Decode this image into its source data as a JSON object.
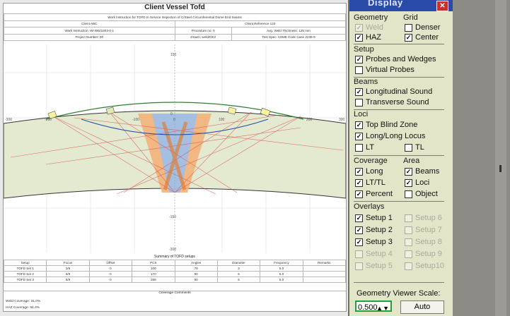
{
  "report": {
    "title": "Client Vessel Tofd",
    "header_rows": [
      [
        "Work Instruction for TOFD In Service Inspection of C/Steel Circumferential Dome End Seams"
      ],
      [
        "Client ABC",
        "Client Reference 123"
      ],
      [
        "Work Instruction: WI BW/1603-0-1",
        "Procedure no: 0",
        "Avg. Weld Thickness: 125 mm"
      ],
      [
        "Project Number: 00",
        "Drawn: weld/OE2",
        "Test Spec: ASME Code Case 2235-9"
      ]
    ],
    "plot": {
      "axis_x_labels": [
        "-300",
        "-200",
        "-100",
        "0",
        "100",
        "200",
        "300"
      ],
      "axis_y_labels": [
        "150",
        "0",
        "-150",
        "-300"
      ]
    },
    "summary_title": "Summary of TOFD setups",
    "summary_headers": [
      "Setup",
      "Focus",
      "Offset",
      "PCS",
      "Angles",
      "Diameter",
      "Frequency",
      "Remarks"
    ],
    "summary_rows": [
      [
        "TOFD Set 1",
        "3/6",
        "0",
        "100",
        "70",
        "3",
        "5.0",
        ""
      ],
      [
        "TOFD Set 2",
        "6/9",
        "0",
        "170",
        "50",
        "6",
        "5.0",
        ""
      ],
      [
        "TOFD Set 3",
        "8/9",
        "0",
        "269",
        "50",
        "6",
        "5.0",
        ""
      ]
    ],
    "coverage_comments_title": "Coverage Comments",
    "coverage_lines": [
      "Weld Coverage: 31.0%",
      "HAZ Coverage: 94.3%"
    ]
  },
  "panel": {
    "title": "Display",
    "close_icon": "close-icon",
    "geometry": {
      "label": "Geometry",
      "weld": "Weld",
      "haz": "HAZ"
    },
    "grid": {
      "label": "Grid",
      "denser": "Denser",
      "center": "Center"
    },
    "setup": {
      "label": "Setup",
      "probes": "Probes and Wedges",
      "virtual": "Virtual Probes"
    },
    "beams": {
      "label": "Beams",
      "longitudinal": "Longitudinal Sound",
      "transverse": "Transverse Sound"
    },
    "loci": {
      "label": "Loci",
      "top_blind": "Top Blind Zone",
      "long_long": "Long/Long Locus",
      "lt": "LT",
      "tl": "TL"
    },
    "coverage": {
      "label": "Coverage",
      "long": "Long",
      "lttl": "LT/TL",
      "percent": "Percent"
    },
    "area": {
      "label": "Area",
      "beams": "Beams",
      "loci": "Loci",
      "object": "Object"
    },
    "overlays": {
      "label": "Overlays",
      "setups": [
        "Setup 1",
        "Setup 2",
        "Setup 3",
        "Setup 4",
        "Setup 5",
        "Setup 6",
        "Setup 7",
        "Setup 8",
        "Setup 9",
        "Setup10"
      ]
    },
    "scale": {
      "label": "Geometry Viewer Scale:",
      "value": "0.500",
      "auto": "Auto"
    }
  }
}
